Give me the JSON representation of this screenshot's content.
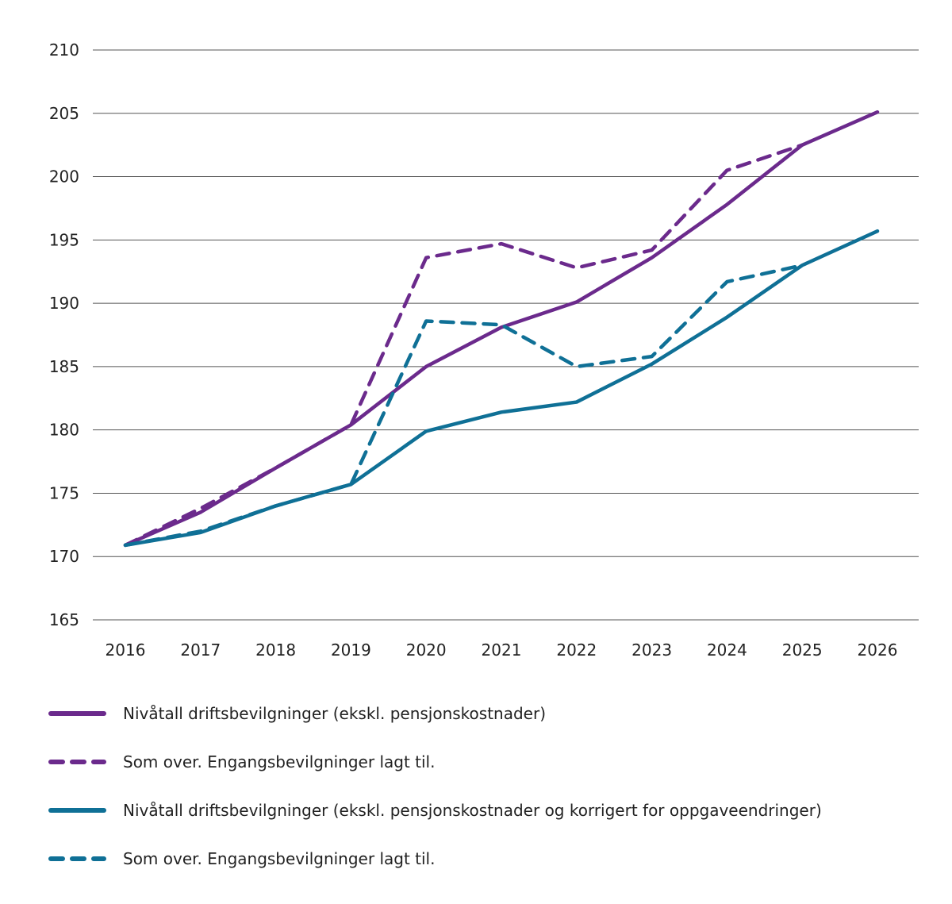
{
  "chart_data": {
    "type": "line",
    "title": "",
    "xlabel": "",
    "ylabel": "",
    "x": [
      "2016",
      "2017",
      "2018",
      "2019",
      "2020",
      "2021",
      "2022",
      "2023",
      "2024",
      "2025",
      "2026"
    ],
    "ylim": [
      165,
      210
    ],
    "yticks": [
      "165",
      "170",
      "175",
      "180",
      "185",
      "190",
      "195",
      "200",
      "205",
      "210"
    ],
    "grid": true,
    "legend_position": "bottom",
    "series": [
      {
        "name": "Nivåtall driftsbevilgninger (ekskl. pensjonskostnader)",
        "color": "#6b2a8c",
        "dash": false,
        "values": [
          170.9,
          173.5,
          177.0,
          180.4,
          185.0,
          188.1,
          190.1,
          193.6,
          197.8,
          202.5,
          205.1
        ]
      },
      {
        "name": "Som over. Engangsbevilgninger lagt til.",
        "color": "#6b2a8c",
        "dash": true,
        "values": [
          170.9,
          173.8,
          177.0,
          180.4,
          193.6,
          194.7,
          192.8,
          194.2,
          200.5,
          202.5,
          null
        ]
      },
      {
        "name": "Nivåtall driftsbevilgninger (ekskl. pensjonskostnader og korrigert for oppgaveendringer)",
        "color": "#0f7096",
        "dash": false,
        "values": [
          170.9,
          171.9,
          174.0,
          175.7,
          179.9,
          181.4,
          182.2,
          185.2,
          188.9,
          193.0,
          195.7
        ]
      },
      {
        "name": "Som over. Engangsbevilgninger lagt til.",
        "color": "#0f7096",
        "dash": true,
        "values": [
          170.9,
          172.0,
          174.0,
          175.7,
          188.6,
          188.3,
          185.0,
          185.8,
          191.7,
          193.0,
          null
        ]
      }
    ]
  }
}
